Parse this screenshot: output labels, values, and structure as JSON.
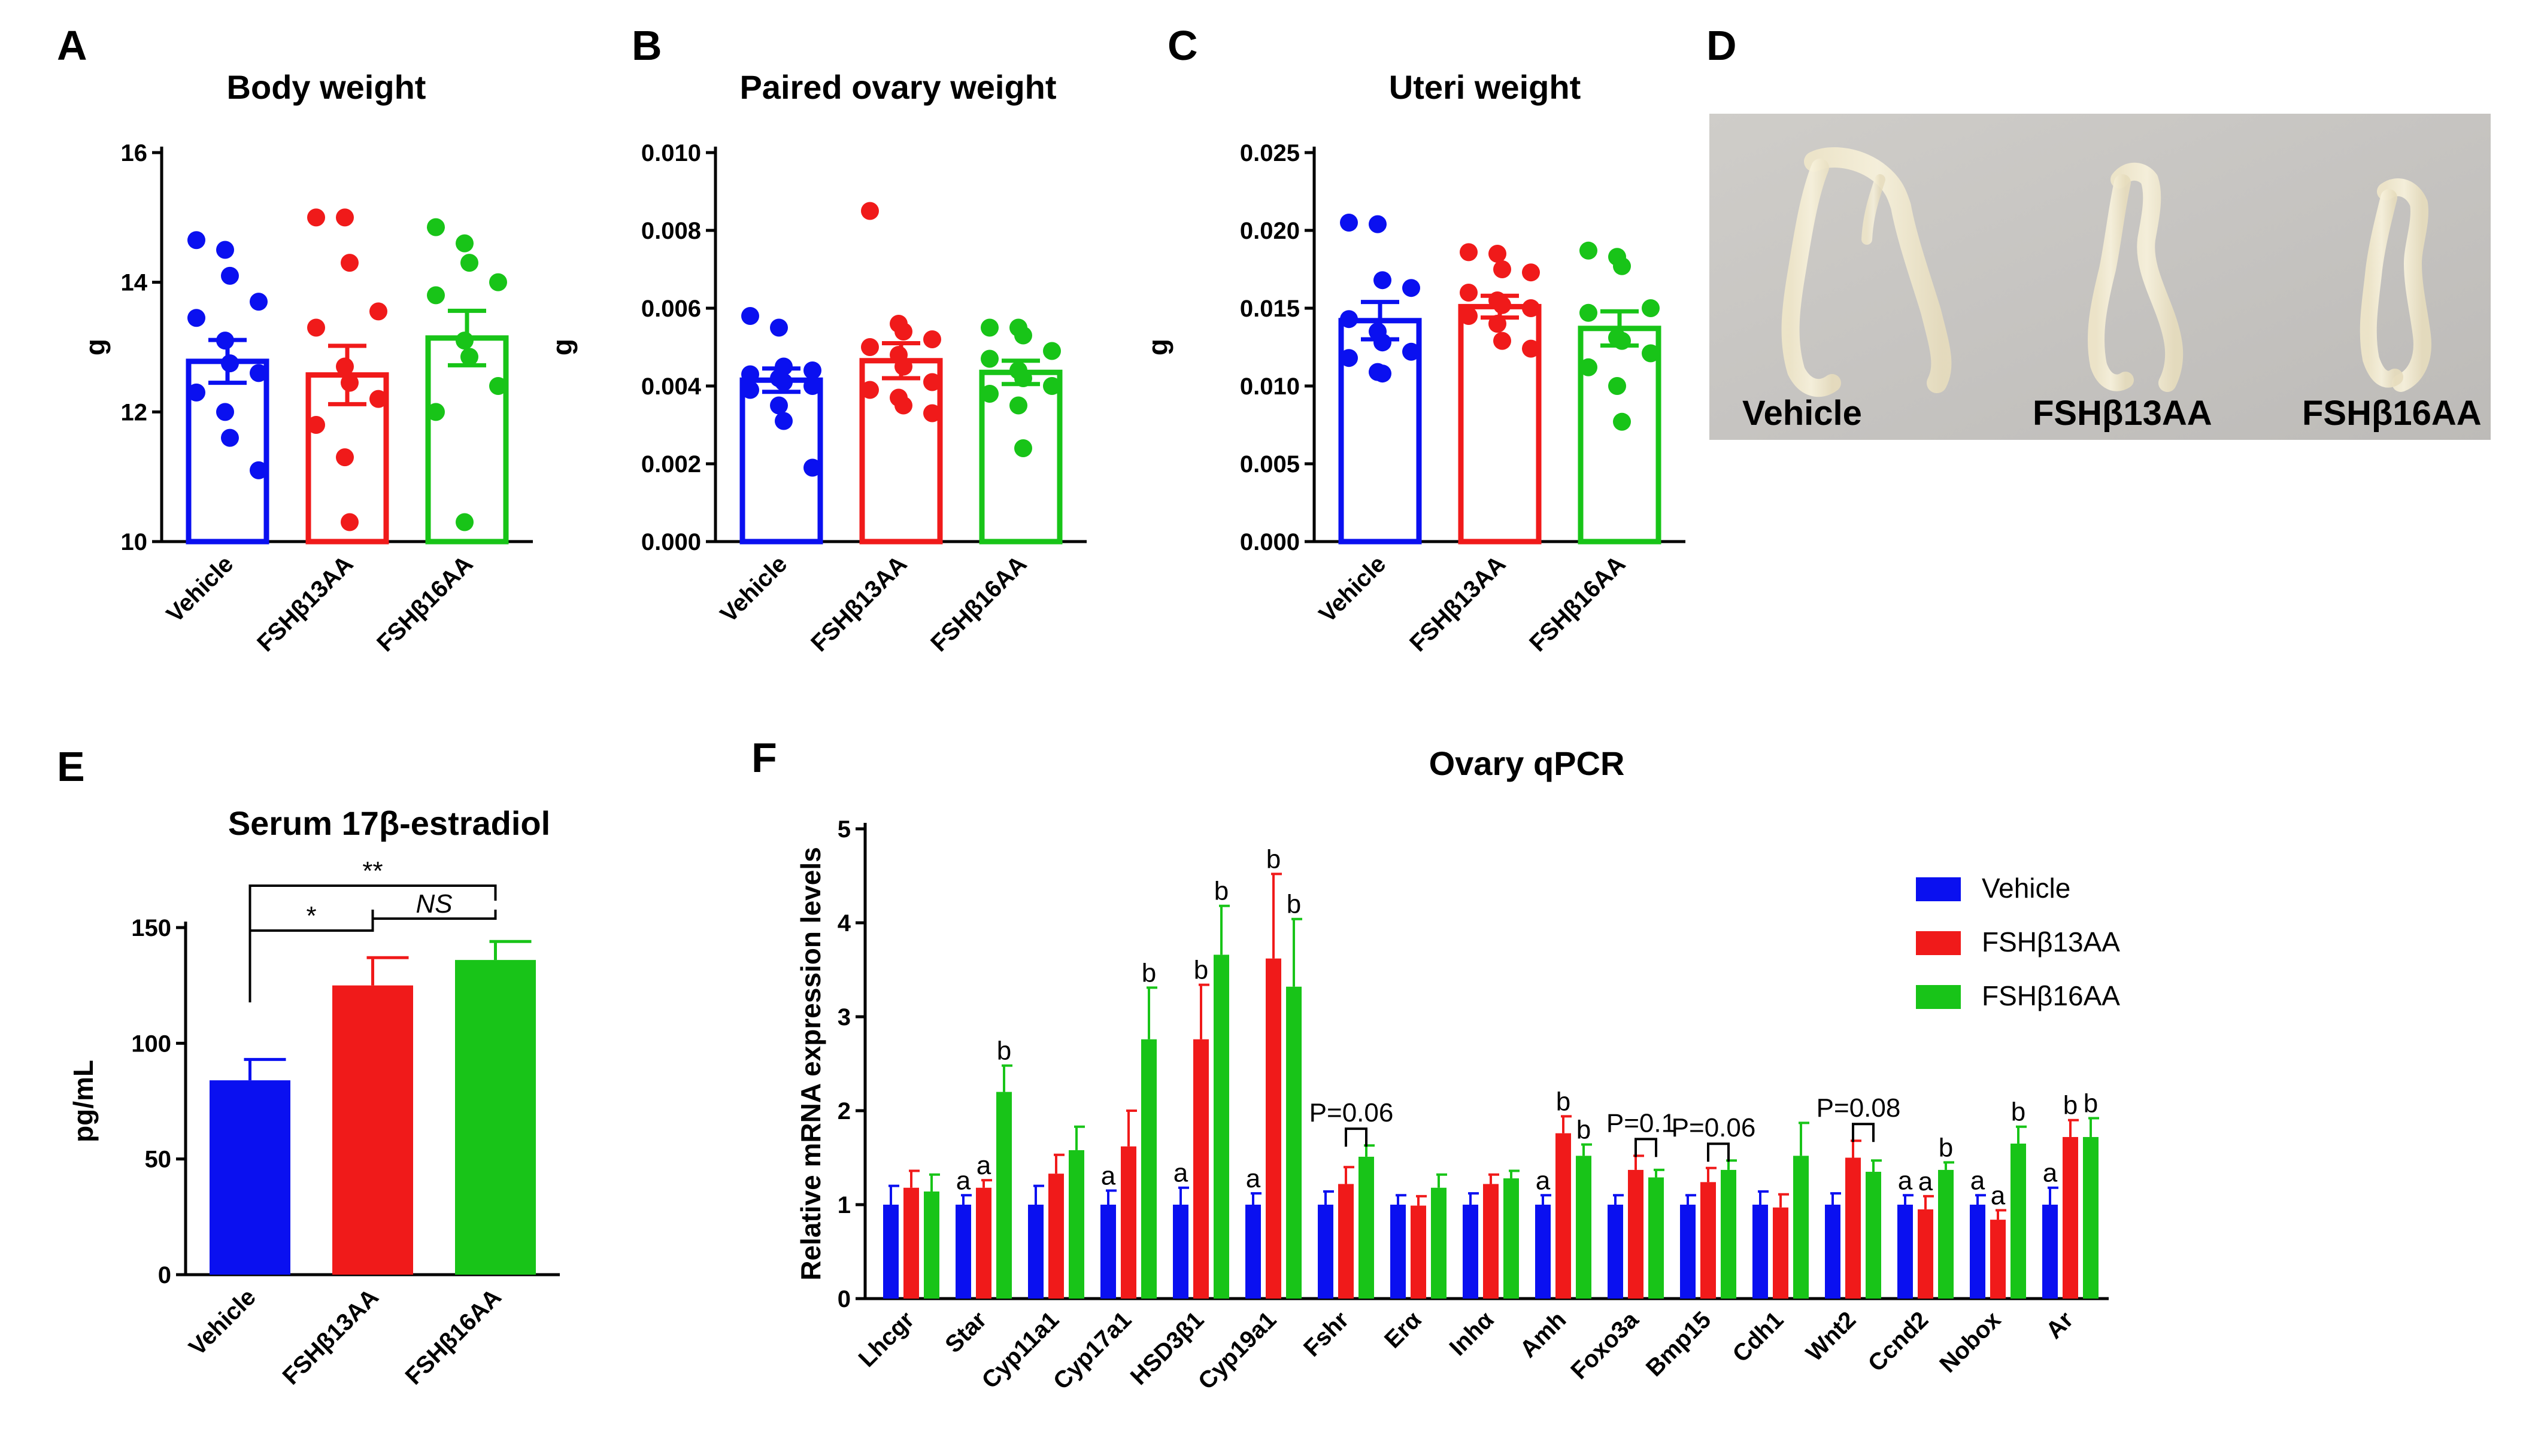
{
  "colors": {
    "vehicle": "#0a10f0",
    "fsh13": "#f01a1a",
    "fsh16": "#18c418"
  },
  "panels": {
    "A": "A",
    "B": "B",
    "C": "C",
    "D": "D",
    "E": "E",
    "F": "F"
  },
  "chart_data": [
    {
      "id": "A",
      "type": "scatter",
      "title": "Body weight",
      "ylabel": "g",
      "ylim": [
        10,
        16
      ],
      "yticks": [
        10,
        12,
        14,
        16
      ],
      "categories": [
        "Vehicle",
        "FSHβ13AA",
        "FSHβ16AA"
      ],
      "means": [
        12.78,
        12.57,
        13.14
      ],
      "sem": [
        0.33,
        0.45,
        0.42
      ],
      "points": [
        [
          14.65,
          14.5,
          14.1,
          13.7,
          13.45,
          13.1,
          12.75,
          12.6,
          12.3,
          12.0,
          11.6,
          11.1
        ],
        [
          15.0,
          15.0,
          14.3,
          13.55,
          13.3,
          12.7,
          12.45,
          12.2,
          11.8,
          11.3,
          10.3
        ],
        [
          14.85,
          14.6,
          14.3,
          14.0,
          13.8,
          13.1,
          12.85,
          12.4,
          12.0,
          10.3
        ]
      ]
    },
    {
      "id": "B",
      "type": "scatter",
      "title": "Paired ovary weight",
      "ylabel": "g",
      "ylim": [
        0,
        0.01
      ],
      "yticks": [
        "0.000",
        "0.002",
        "0.004",
        "0.006",
        "0.008",
        "0.010"
      ],
      "categories": [
        "Vehicle",
        "FSHβ13AA",
        "FSHβ16AA"
      ],
      "means": [
        0.00415,
        0.00465,
        0.00435
      ],
      "sem": [
        0.0003,
        0.00045,
        0.0003
      ],
      "points": [
        [
          0.0058,
          0.0055,
          0.0045,
          0.0044,
          0.0043,
          0.0042,
          0.0041,
          0.004,
          0.0039,
          0.0035,
          0.0031,
          0.0019
        ],
        [
          0.0085,
          0.0056,
          0.0054,
          0.0052,
          0.005,
          0.0048,
          0.0045,
          0.0041,
          0.0039,
          0.0037,
          0.0035,
          0.0033
        ],
        [
          0.0055,
          0.0055,
          0.0053,
          0.0049,
          0.0047,
          0.0044,
          0.0042,
          0.004,
          0.0038,
          0.0035,
          0.0024
        ]
      ]
    },
    {
      "id": "C",
      "type": "scatter",
      "title": "Uteri weight",
      "ylabel": "g",
      "ylim": [
        0,
        0.025
      ],
      "yticks": [
        "0.000",
        "0.005",
        "0.010",
        "0.015",
        "0.020",
        "0.025"
      ],
      "categories": [
        "Vehicle",
        "FSHβ13AA",
        "FSHβ16AA"
      ],
      "means": [
        0.0142,
        0.0151,
        0.0137
      ],
      "sem": [
        0.0012,
        0.0007,
        0.0011
      ],
      "points": [
        [
          0.0205,
          0.0204,
          0.0168,
          0.0163,
          0.0143,
          0.0135,
          0.0128,
          0.0122,
          0.0118,
          0.0109,
          0.0108
        ],
        [
          0.0186,
          0.0185,
          0.0175,
          0.0173,
          0.016,
          0.0155,
          0.0152,
          0.015,
          0.0145,
          0.014,
          0.0129,
          0.0124
        ],
        [
          0.0187,
          0.0183,
          0.0177,
          0.015,
          0.0147,
          0.0131,
          0.0129,
          0.0121,
          0.0112,
          0.01,
          0.0077
        ]
      ]
    },
    {
      "id": "E",
      "type": "bar",
      "title": "Serum 17β-estradiol",
      "ylabel": "pg/mL",
      "ylim": [
        0,
        150
      ],
      "yticks": [
        0,
        50,
        100,
        150
      ],
      "categories": [
        "Vehicle",
        "FSHβ13AA",
        "FSHβ16AA"
      ],
      "values": [
        84,
        125,
        136
      ],
      "errors": [
        9,
        12,
        8
      ],
      "annotations": [
        {
          "from": 0,
          "to": 1,
          "label": "*"
        },
        {
          "from": 1,
          "to": 2,
          "label": "NS"
        },
        {
          "from": 0,
          "to": 2,
          "label": "**"
        }
      ]
    },
    {
      "id": "F",
      "type": "bar",
      "title": "Ovary qPCR",
      "ylabel": "Relative mRNA expression levels",
      "ylim": [
        0,
        5
      ],
      "yticks": [
        0,
        1,
        2,
        3,
        4,
        5
      ],
      "categories": [
        "Lhcgr",
        "Star",
        "Cyp11a1",
        "Cyp17a1",
        "HSD3β1",
        "Cyp19a1",
        "Fshr",
        "Erα",
        "Inhα",
        "Amh",
        "Foxo3a",
        "Bmp15",
        "Cdh1",
        "Wnt2",
        "Ccnd2",
        "Nobox",
        "Ar"
      ],
      "legend": [
        "Vehicle",
        "FSHβ13AA",
        "FSHβ16AA"
      ],
      "series": [
        {
          "name": "Vehicle",
          "values": [
            1,
            1,
            1,
            1,
            1,
            1,
            1,
            1,
            1,
            1,
            1,
            1,
            1,
            1,
            1,
            1,
            1
          ],
          "errors": [
            0.2,
            0.1,
            0.2,
            0.15,
            0.18,
            0.12,
            0.14,
            0.1,
            0.12,
            0.1,
            0.1,
            0.1,
            0.14,
            0.12,
            0.1,
            0.1,
            0.18
          ]
        },
        {
          "name": "FSHβ13AA",
          "values": [
            1.18,
            1.18,
            1.33,
            1.62,
            2.76,
            3.62,
            1.22,
            0.99,
            1.22,
            1.76,
            1.37,
            1.24,
            0.97,
            1.5,
            0.95,
            0.84,
            1.72
          ],
          "errors": [
            0.18,
            0.08,
            0.2,
            0.38,
            0.58,
            0.9,
            0.18,
            0.1,
            0.1,
            0.18,
            0.15,
            0.15,
            0.14,
            0.18,
            0.14,
            0.1,
            0.18
          ]
        },
        {
          "name": "FSHβ16AA",
          "values": [
            1.14,
            2.2,
            1.58,
            2.76,
            3.66,
            3.32,
            1.51,
            1.18,
            1.28,
            1.52,
            1.29,
            1.37,
            1.52,
            1.35,
            1.37,
            1.65,
            1.72
          ],
          "errors": [
            0.18,
            0.28,
            0.25,
            0.55,
            0.52,
            0.72,
            0.12,
            0.14,
            0.08,
            0.12,
            0.08,
            0.1,
            0.35,
            0.12,
            0.08,
            0.18,
            0.2
          ]
        }
      ],
      "letters": [
        {
          "cat": 1,
          "s": 0,
          "t": "a"
        },
        {
          "cat": 1,
          "s": 1,
          "t": "a"
        },
        {
          "cat": 1,
          "s": 2,
          "t": "b"
        },
        {
          "cat": 3,
          "s": 0,
          "t": "a"
        },
        {
          "cat": 3,
          "s": 2,
          "t": "b"
        },
        {
          "cat": 4,
          "s": 0,
          "t": "a"
        },
        {
          "cat": 4,
          "s": 1,
          "t": "b"
        },
        {
          "cat": 4,
          "s": 2,
          "t": "b"
        },
        {
          "cat": 5,
          "s": 0,
          "t": "a"
        },
        {
          "cat": 5,
          "s": 1,
          "t": "b"
        },
        {
          "cat": 5,
          "s": 2,
          "t": "b"
        },
        {
          "cat": 9,
          "s": 0,
          "t": "a"
        },
        {
          "cat": 9,
          "s": 1,
          "t": "b"
        },
        {
          "cat": 9,
          "s": 2,
          "t": "b"
        },
        {
          "cat": 14,
          "s": 0,
          "t": "a"
        },
        {
          "cat": 14,
          "s": 1,
          "t": "a"
        },
        {
          "cat": 14,
          "s": 2,
          "t": "b"
        },
        {
          "cat": 15,
          "s": 0,
          "t": "a"
        },
        {
          "cat": 15,
          "s": 1,
          "t": "a"
        },
        {
          "cat": 15,
          "s": 2,
          "t": "b"
        },
        {
          "cat": 16,
          "s": 0,
          "t": "a"
        },
        {
          "cat": 16,
          "s": 1,
          "t": "b"
        },
        {
          "cat": 16,
          "s": 2,
          "t": "b"
        }
      ],
      "pvalues": [
        {
          "cat": 6,
          "t": "P=0.06"
        },
        {
          "cat": 10,
          "t": "P=0.1"
        },
        {
          "cat": 11,
          "t": "P=0.06"
        },
        {
          "cat": 13,
          "t": "P=0.08"
        }
      ]
    }
  ],
  "photo": {
    "labels": [
      "Vehicle",
      "FSHβ13AA",
      "FSHβ16AA"
    ]
  }
}
